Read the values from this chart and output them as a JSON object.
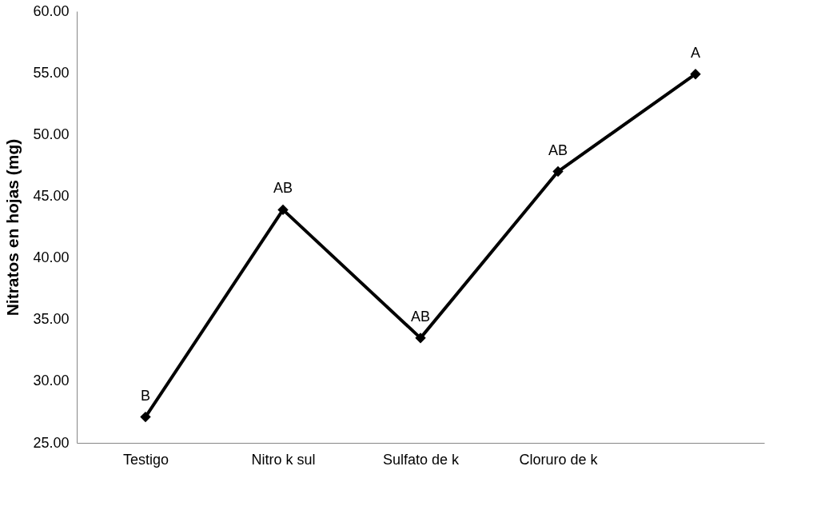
{
  "chart_data": {
    "type": "line",
    "ylabel": "Nitratos en hojas (mg)",
    "categories": [
      "Testigo",
      "Nitro k sul",
      "Sulfato de k",
      "Cloruro de k",
      null
    ],
    "series": [
      {
        "color": "#000000",
        "values": [
          27.1,
          43.9,
          33.5,
          47.0,
          54.9
        ],
        "value_labels": [
          "B",
          "AB",
          "AB",
          "AB",
          "A"
        ]
      }
    ],
    "ylim": [
      25,
      60
    ],
    "yticks": [
      {
        "value": 25,
        "label": "25.00"
      },
      {
        "value": 30,
        "label": "30.00"
      },
      {
        "value": 35,
        "label": "35.00"
      },
      {
        "value": 40,
        "label": "40.00"
      },
      {
        "value": 45,
        "label": "45.00"
      },
      {
        "value": 50,
        "label": "50.00"
      },
      {
        "value": 55,
        "label": "55.00"
      },
      {
        "value": 60,
        "label": "60.00"
      }
    ],
    "grid": false,
    "marker": "diamond",
    "line_style": "solid"
  }
}
